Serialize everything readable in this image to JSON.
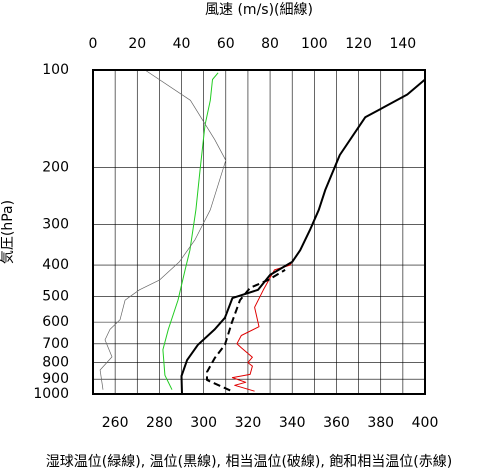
{
  "chart_data": {
    "type": "line",
    "x2_label": "風速 (m/s)(細線)",
    "y_label": "気圧(hPa)",
    "x_label": "湿球温位(緑線), 温位(黒線), 相当温位(破線), 飽和相当温位(赤線)",
    "xlim": [
      250,
      400
    ],
    "xticks": [
      260,
      280,
      300,
      320,
      340,
      360,
      380,
      400
    ],
    "x2lim": [
      0,
      150
    ],
    "x2ticks": [
      0,
      20,
      40,
      60,
      80,
      100,
      120,
      140
    ],
    "ylim": [
      1000,
      100
    ],
    "yticks": [
      100,
      200,
      300,
      400,
      500,
      600,
      700,
      800,
      900,
      1000
    ],
    "ylog": true,
    "grid": true,
    "series": [
      {
        "name": "飽和相当温位",
        "color": "#e00000",
        "width": 1,
        "dash": false,
        "x": [
          323,
          314,
          319,
          313,
          321,
          322,
          320,
          322,
          317,
          315,
          317,
          325,
          323,
          327,
          332,
          339,
          343.6,
          348,
          352,
          355,
          361.5,
          373,
          392,
          400
        ],
        "y": [
          980,
          940,
          920,
          890,
          870,
          820,
          800,
          770,
          720,
          700,
          660,
          620,
          540,
          477,
          414,
          400,
          360,
          312,
          270,
          234,
          183,
          140,
          119,
          107
        ]
      },
      {
        "name": "温位",
        "color": "#000000",
        "width": 2,
        "dash": false,
        "x": [
          290.2,
          290,
          292.5,
          297.4,
          305,
          309.6,
          313,
          324.6,
          330,
          340,
          343.6,
          348,
          352,
          355,
          361.5,
          373,
          392,
          400
        ],
        "y": [
          1000,
          880,
          786,
          705,
          632,
          582,
          506,
          477,
          429,
          391,
          360,
          312,
          270,
          234,
          183,
          140,
          119,
          107
        ]
      },
      {
        "name": "相当温位",
        "color": "#000000",
        "width": 2,
        "dash": true,
        "x": [
          312,
          301.5,
          301.5,
          305,
          309.6,
          312.8,
          316.4,
          321,
          329,
          336.8
        ],
        "y": [
          975,
          905,
          855,
          775,
          705,
          600,
          513,
          470,
          445,
          414
        ]
      },
      {
        "name": "湿球温位",
        "color": "#22cc22",
        "width": 1,
        "dash": false,
        "x": [
          285.7,
          282.5,
          281.6,
          284,
          288.4,
          291.6,
          293.8,
          296.5,
          298.4,
          300.6,
          303,
          304,
          306.5
        ],
        "y": [
          970,
          875,
          730,
          632,
          513,
          414,
          360,
          270,
          203,
          148,
          124,
          107,
          102
        ]
      },
      {
        "name": "風速",
        "color": "#666666",
        "width": 0.7,
        "dash": false,
        "axis": "x2",
        "x": [
          4.5,
          3.2,
          8.6,
          5.4,
          7.7,
          12.2,
          14.5,
          21,
          30,
          39,
          46,
          53,
          60,
          55,
          44,
          23.5
        ],
        "y": [
          970,
          843,
          768,
          681,
          632,
          590,
          513,
          477,
          445,
          391,
          335,
          270,
          190,
          164,
          124,
          100
        ]
      }
    ]
  }
}
